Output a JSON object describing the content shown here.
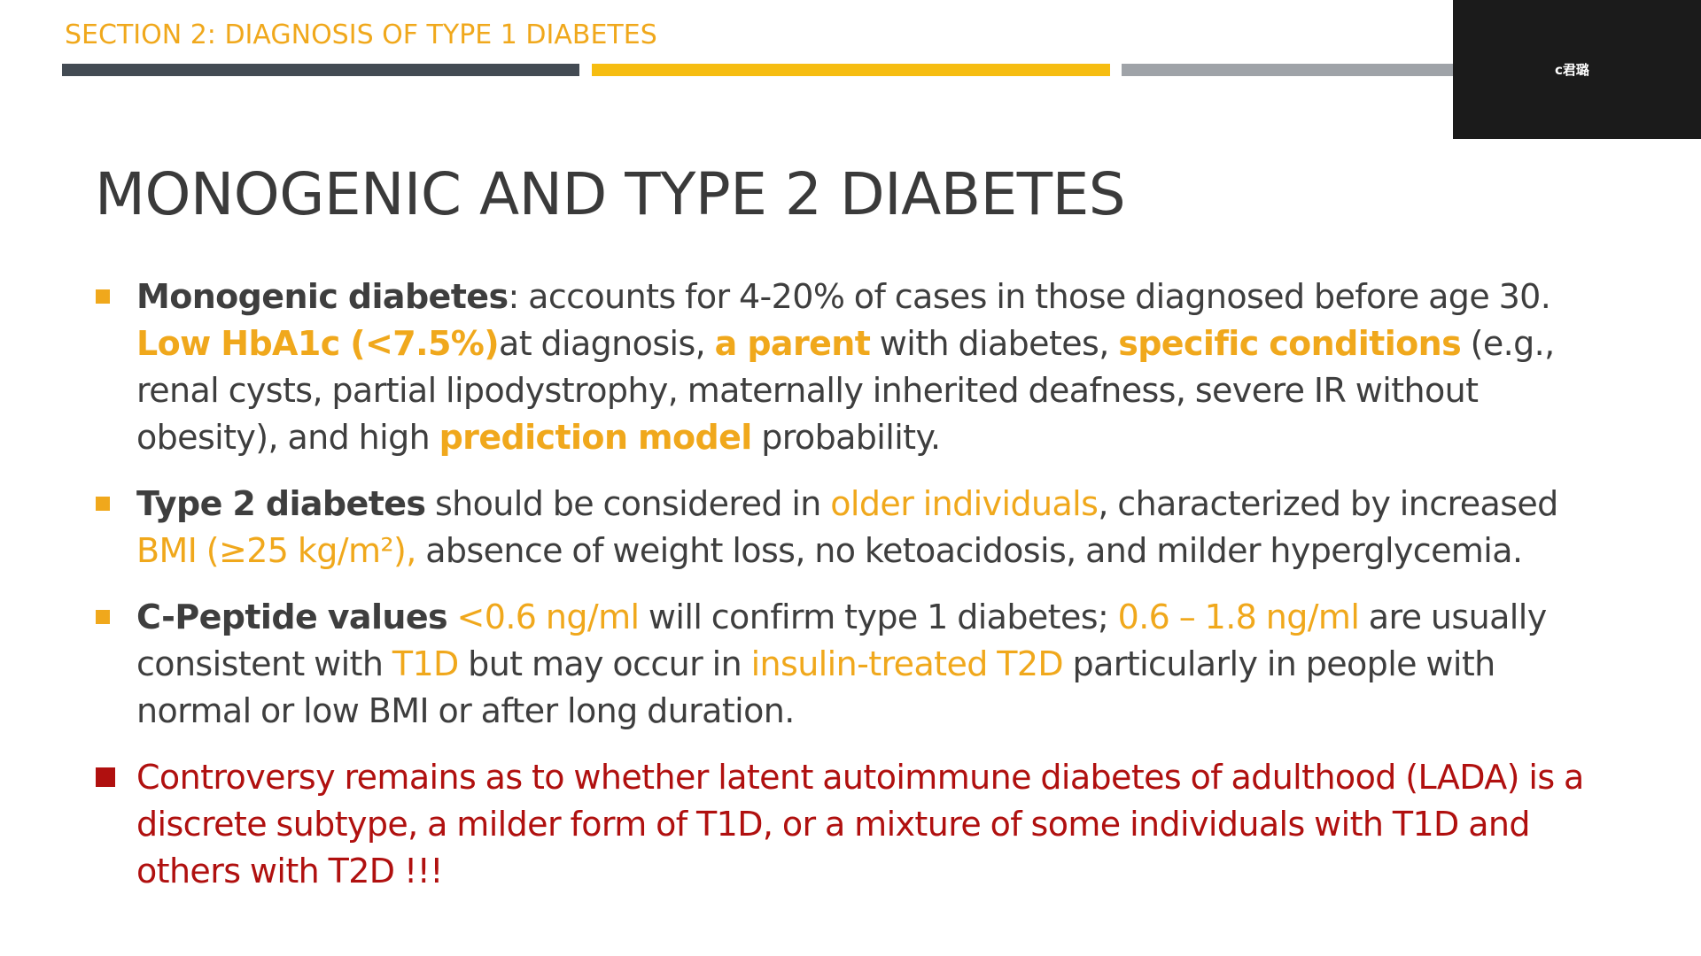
{
  "section_label": "SECTION 2: DIAGNOSIS OF TYPE 1 DIABETES",
  "participant_name": "c君璐",
  "title": "MONOGENIC AND TYPE 2 DIABETES",
  "colors": {
    "accent": "#f0a81c",
    "dark_bar": "#434b53",
    "yellow_bar": "#f6bd11",
    "gray_bar": "#9fa3a8",
    "warning_red": "#b0100f",
    "text": "#3e3e3e"
  },
  "bullets": [
    {
      "b1_term": "Monogenic diabetes",
      "b1_t1": ": accounts for 4-20% of cases in those diagnosed before age 30. ",
      "b1_h1": "Low HbA1c (<7.5%)",
      "b1_t2": "at diagnosis, ",
      "b1_h2": "a parent",
      "b1_t3": " with diabetes, ",
      "b1_h3": "specific conditions",
      "b1_t4": " (e.g., renal cysts, partial lipodystrophy, maternally inherited deafness, severe IR without obesity), and high ",
      "b1_h4": "prediction model",
      "b1_t5": " probability."
    },
    {
      "b2_term": "Type 2 diabetes",
      "b2_t1": " should be considered in ",
      "b2_h1": "older individuals",
      "b2_t2": ", characterized by increased ",
      "b2_h2": "BMI (≥25 kg/m²),",
      "b2_t3": " absence of weight loss, no ketoacidosis, and milder hyperglycemia."
    },
    {
      "b3_term": "C-Peptide values",
      "b3_h1": " <0.6 ng/ml",
      "b3_t1": " will confirm type 1 diabetes; ",
      "b3_h2": "0.6 – 1.8 ng/ml",
      "b3_t2": " are usually consistent with ",
      "b3_h3": "T1D",
      "b3_t3": " but may occur in ",
      "b3_h4": "insulin-treated T2D",
      "b3_t4": " particularly in people with normal or low BMI or after long duration."
    },
    {
      "b4_text": "Controversy remains as to whether latent autoimmune diabetes of adulthood (LADA) is a discrete subtype, a milder form of T1D, or a mixture of some individuals with T1D and others with T2D !!!"
    }
  ]
}
